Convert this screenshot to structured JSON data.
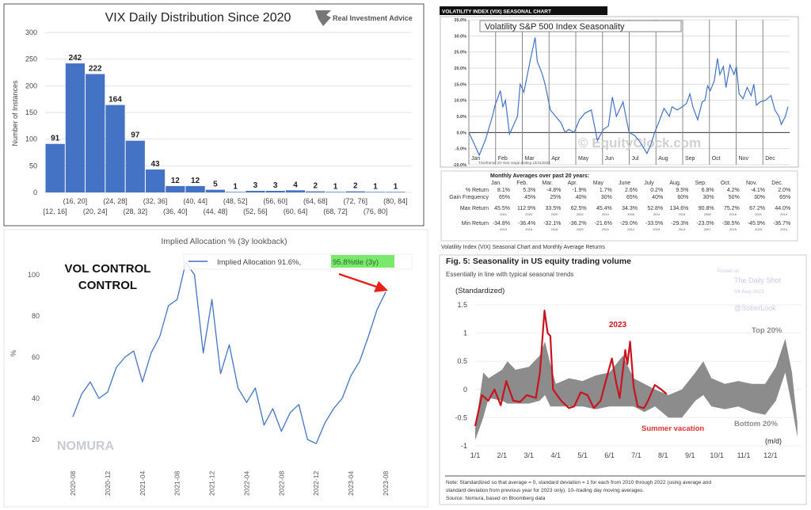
{
  "chart_data": [
    {
      "type": "bar",
      "title": "VIX Daily Distribution Since 2020",
      "logo_text": "Real Investment Advice",
      "ylabel": "Number of Instances",
      "xlabel": "",
      "ylim": [
        0,
        300
      ],
      "yticks": [
        0,
        50,
        100,
        150,
        200,
        250,
        300
      ],
      "grid": true,
      "bar_color": "#4472c4",
      "categories": [
        "[12, 16]",
        "(16, 20]",
        "(20, 24]",
        "(24, 28]",
        "(28, 32]",
        "(32, 36]",
        "(36, 40]",
        "(40, 44]",
        "(44, 48]",
        "(48, 52]",
        "(52, 56]",
        "(56, 60]",
        "(60, 64]",
        "(64, 68]",
        "(68, 72]",
        "(72, 76]",
        "(76, 80]",
        "(80, 84]"
      ],
      "values": [
        91,
        242,
        222,
        164,
        97,
        43,
        12,
        12,
        5,
        1,
        3,
        3,
        4,
        2,
        1,
        2,
        1,
        1
      ]
    },
    {
      "type": "line",
      "header": "VOLATILITY INDEX (VIX) SEASONAL CHART",
      "title": "Volatility S&P 500 Index Seasonality",
      "watermark": "© EquityClock.com",
      "footnote": "Timeframe: 20-Year range ending 12/31/2022",
      "caption": "Volatility Index (VIX) Seasonal Chart and Monthly Average Returns",
      "ylim": [
        -10,
        35
      ],
      "yticks": [
        "-10.0%",
        "-5.0%",
        "0.0%",
        "5.0%",
        "10.0%",
        "15.0%",
        "20.0%",
        "25.0%",
        "30.0%",
        "35.0%"
      ],
      "months": [
        "Jan",
        "Feb",
        "Mar",
        "Apr",
        "May",
        "Jun",
        "Jul",
        "Aug",
        "Sep",
        "Oct",
        "Nov",
        "Dec"
      ],
      "line_color": "#4472c4",
      "series": [
        {
          "x": [
            0,
            0.39,
            0.63,
            0.88,
            0.98,
            1.18,
            1.27,
            1.37,
            1.52,
            1.82,
            1.92,
            2.06,
            2.31,
            2.48,
            2.56,
            2.66,
            2.75,
            2.85,
            2.95,
            3.05,
            3.25,
            3.45,
            3.6,
            3.74,
            3.94,
            4.14,
            4.34,
            4.58,
            4.81,
            5.03,
            5.22,
            5.37,
            5.52,
            5.77,
            5.92,
            6.0,
            6.21,
            6.41,
            6.66,
            6.8,
            6.95,
            7.1,
            7.3,
            7.5,
            7.6,
            7.79,
            7.99,
            8.14,
            8.27,
            8.38,
            8.56,
            8.73,
            8.83,
            8.93,
            9.03,
            9.18,
            9.3,
            9.39,
            9.52,
            9.62,
            9.77,
            9.92,
            10.01,
            10.11,
            10.26,
            10.41,
            10.56,
            10.66,
            10.76,
            10.9,
            11.1,
            11.3,
            11.45,
            11.6,
            11.69,
            11.84,
            11.94
          ],
          "y": [
            0,
            -7,
            -2,
            5,
            8.5,
            13,
            8,
            10,
            -0.5,
            5,
            15,
            12.5,
            23,
            29.5,
            22,
            20,
            18,
            15,
            11,
            7,
            5,
            3,
            0,
            1,
            0,
            4,
            6,
            7,
            -2.5,
            1,
            2,
            11,
            5,
            9.5,
            3,
            0,
            -1,
            -3,
            -6.5,
            -4,
            0,
            3,
            7.5,
            5,
            8,
            7,
            8,
            9,
            12,
            8,
            4,
            9.5,
            10,
            14.5,
            13,
            16,
            23,
            18,
            20.5,
            14,
            21,
            18,
            20.5,
            12,
            10.5,
            14,
            11.5,
            15,
            8.5,
            9.5,
            10,
            11.5,
            7,
            5,
            2.5,
            5,
            8
          ]
        }
      ],
      "table": {
        "title": "Monthly Averages over past 20 years:",
        "columns": [
          "Jan.",
          "Feb.",
          "Mar.",
          "Apr.",
          "May",
          "June",
          "July",
          "Aug.",
          "Sep.",
          "Oct.",
          "Nov.",
          "Dec."
        ],
        "rows": [
          {
            "label": "% Return",
            "values": [
              "8.1%",
              "5.3%",
              "-4.8%",
              "-1.9%",
              "1.7%",
              "2.6%",
              "0.2%",
              "9.5%",
              "6.8%",
              "4.2%",
              "-4.1%",
              "2.0%"
            ]
          },
          {
            "label": "Gain Frequency",
            "values": [
              "65%",
              "45%",
              "25%",
              "40%",
              "30%",
              "65%",
              "40%",
              "60%",
              "30%",
              "50%",
              "30%",
              "65%"
            ]
          },
          {
            "label": "Max Return",
            "values": [
              "45.5%",
              "112.9%",
              "33.5%",
              "62.5%",
              "45.4%",
              "34.3%",
              "52.8%",
              "134.6%",
              "90.8%",
              "75.2%",
              "67.2%",
              "44.0%"
            ],
            "years": [
              "2021",
              "2020",
              "2020",
              "2022",
              "2010",
              "2008",
              "2011",
              "2015",
              "2008",
              "2018",
              "2021",
              "2014"
            ]
          },
          {
            "label": "Min Return",
            "values": [
              "-34.8%",
              "-36.4%",
              "-32.1%",
              "-36.2%",
              "-21.6%",
              "-29.0%",
              "-33.5%",
              "-29.3%",
              "-23.0%",
              "-38.5%",
              "-45.9%",
              "-36.7%"
            ],
            "years": [
              "2019",
              "2015",
              "2016",
              "2020",
              "2022",
              "2012",
              "2015",
              "2014",
              "2007",
              "2015",
              "2020",
              "2021"
            ]
          }
        ]
      }
    },
    {
      "type": "line",
      "title": "Implied Allocation % (3y lookback)",
      "annotation": "VOL CONTROL",
      "logo_text": "NOMURA",
      "ylabel": "%",
      "ylim": [
        15,
        108
      ],
      "yticks": [
        20,
        40,
        60,
        80,
        100
      ],
      "xticks": [
        "2020-08",
        "2020-12",
        "2021-04",
        "2021-08",
        "2021-12",
        "2022-04",
        "2022-08",
        "2022-12",
        "2023-04",
        "2023-08"
      ],
      "legend": {
        "label": "Implied Allocation 91.6%,",
        "highlight": "95.8%tile (3y)",
        "highlight_color": "#7ae86a",
        "placement": "top-right"
      },
      "line_color": "#4472c4",
      "arrow_color": "#e8201a",
      "series": [
        {
          "name": "Implied Allocation",
          "x": [
            "2020-08",
            "2020-09",
            "2020-10",
            "2020-11",
            "2020-12",
            "2021-01",
            "2021-02",
            "2021-03",
            "2021-04",
            "2021-05",
            "2021-06",
            "2021-07",
            "2021-08",
            "2021-09",
            "2021-10",
            "2021-11",
            "2021-12",
            "2022-01",
            "2022-02",
            "2022-03",
            "2022-04",
            "2022-05",
            "2022-06",
            "2022-07",
            "2022-08",
            "2022-09",
            "2022-10",
            "2022-11",
            "2022-12",
            "2023-01",
            "2023-02",
            "2023-03",
            "2023-04",
            "2023-05",
            "2023-06",
            "2023-07",
            "2023-08"
          ],
          "y": [
            31,
            42,
            48,
            40,
            43,
            55,
            60,
            63,
            48,
            62,
            70,
            85,
            88,
            106,
            100,
            62,
            88,
            52,
            66,
            45,
            38,
            45,
            27,
            35,
            24,
            33,
            37,
            20,
            18,
            28,
            35,
            40,
            51,
            58,
            70,
            83,
            91.6
          ]
        }
      ]
    },
    {
      "type": "area",
      "title": "Fig. 5: Seasonality in US equity trading volume",
      "subtitle": "Essentially in line with typical seasonal trends",
      "ylabel": "(Standardized)",
      "xlabel": "(m/d)",
      "ylim": [
        -1,
        1.5
      ],
      "yticks": [
        "-1",
        "-0.5",
        "0",
        "0.5",
        "1",
        "1.5"
      ],
      "xticks": [
        "1/1",
        "2/1",
        "3/1",
        "4/1",
        "5/1",
        "6/1",
        "7/1",
        "8/1",
        "9/1",
        "10/1",
        "11/1",
        "12/1"
      ],
      "watermark": {
        "posted": "Posted on",
        "source": "The Daily Shot",
        "date": "09-Aug-2023",
        "handle": "@SoberLook"
      },
      "labels": {
        "year": "2023",
        "top": "Top 20%",
        "bottom": "Bottom 20%",
        "summer": "Summer vacation"
      },
      "band_color": "#8c8c8c",
      "line_color": "#c8141e",
      "band": {
        "x": [
          0,
          0.3,
          0.5,
          1,
          1.2,
          1.5,
          2,
          2.4,
          2.6,
          2.8,
          3,
          3.5,
          4,
          4.5,
          5,
          5.5,
          5.9,
          6.3,
          6.7,
          7.2,
          7.7,
          8.2,
          8.5,
          8.8,
          9.3,
          9.8,
          10.3,
          10.8,
          11.2,
          11.55,
          11.8,
          12
        ],
        "top": [
          -0.7,
          0.3,
          0.2,
          0.35,
          0.5,
          0.35,
          0.4,
          0.6,
          0.85,
          0.45,
          0.1,
          0.2,
          0.15,
          0.25,
          0.3,
          0.6,
          0.2,
          0.1,
          0.0,
          -0.1,
          0.0,
          0.3,
          0.5,
          0.2,
          0.1,
          0.15,
          0.1,
          0.1,
          0.4,
          0.9,
          0.3,
          -0.6
        ],
        "bottom": [
          -0.9,
          -0.5,
          -0.15,
          -0.2,
          -0.25,
          -0.25,
          -0.25,
          -0.2,
          -0.1,
          -0.3,
          -0.3,
          -0.3,
          -0.3,
          -0.35,
          -0.3,
          -0.3,
          -0.3,
          -0.4,
          -0.3,
          -0.5,
          -0.5,
          -0.2,
          -0.1,
          -0.3,
          -0.35,
          -0.3,
          -0.4,
          -0.45,
          -0.2,
          0.3,
          -0.3,
          -0.85
        ]
      },
      "series": [
        {
          "name": "2023",
          "x": [
            0,
            0.25,
            0.49,
            0.72,
            0.95,
            1.16,
            1.42,
            1.67,
            1.92,
            2.26,
            2.41,
            2.58,
            2.7,
            2.8,
            2.9,
            3.2,
            3.49,
            3.69,
            3.93,
            4.18,
            4.42,
            4.67,
            4.95,
            5.09,
            5.26,
            5.38,
            5.59,
            5.67,
            5.77,
            5.9,
            6.05,
            6.29,
            6.44,
            6.69,
            6.93,
            7.13
          ],
          "y": [
            -0.65,
            -0.1,
            -0.2,
            0,
            -0.28,
            0.15,
            -0.2,
            -0.22,
            -0.1,
            -0.15,
            0.3,
            1.4,
            1.0,
            0.95,
            0,
            -0.2,
            -0.33,
            -0.3,
            -0.05,
            -0.1,
            -0.33,
            -0.2,
            0.3,
            0.55,
            0.1,
            -0.15,
            0.7,
            0.45,
            0.85,
            0.05,
            -0.3,
            -0.33,
            -0.2,
            0.08,
            0,
            -0.08
          ]
        }
      ],
      "note": [
        "Note: Standardized so that average = 0, standard deviation = 1 for each from 2010 through 2022 (using average and",
        "standard deviation from previous year for 2023 only). 10–trading day moving averages."
      ],
      "source": "Source: Nomura, based on Bloomberg data"
    }
  ]
}
